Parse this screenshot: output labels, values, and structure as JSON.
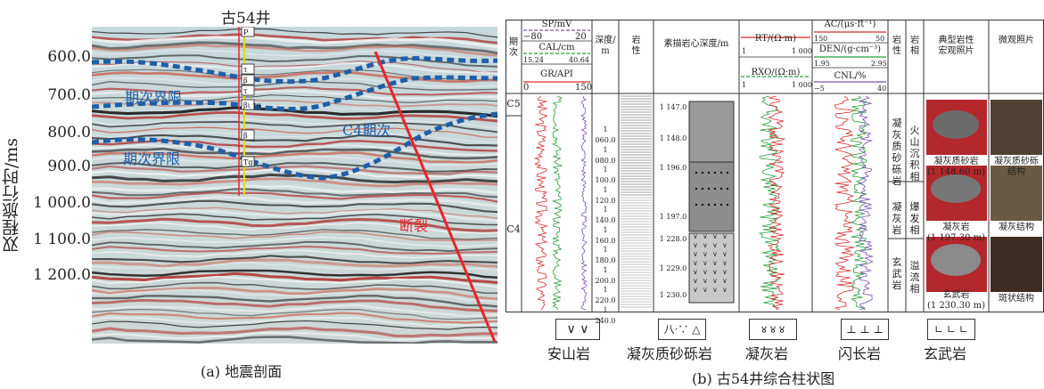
{
  "panel_a": {
    "well_name": "古54井",
    "y_axis_title": "双程旅行时/ms",
    "y_ticks": [
      "600.0",
      "700.0",
      "800.0",
      "900.0",
      "1 000.0",
      "1 100.0",
      "1 200.0"
    ],
    "labels": {
      "boundary_1": "期次界限",
      "boundary_2": "期次界限",
      "c4": "C4期次",
      "fault": "断裂"
    },
    "well_tags": [
      "P",
      "τ",
      "β",
      "τ",
      "βι τα",
      "β",
      "Tg"
    ],
    "caption": "(a) 地震剖面"
  },
  "panel_b": {
    "headers": {
      "stage": "期\n次",
      "sp": "SP/mV",
      "sp_range": [
        "−80",
        "20"
      ],
      "cal": "CAL/cm",
      "cal_range": [
        "15.24",
        "40.64"
      ],
      "gr": "GR/API",
      "gr_range": [
        "0",
        "150"
      ],
      "depth": "深度/\nm",
      "lithology": "岩\n性",
      "core": "素描岩心深度/m",
      "rt": "RT/(Ω·m)",
      "rt_range": [
        "1",
        "1 000"
      ],
      "rxo": "RXO/(Ω·m)",
      "rxo_range": [
        "1",
        "1 000"
      ],
      "ac": "AC/(μs·ft⁻¹)",
      "ac_range": [
        "150",
        "50"
      ],
      "den": "DEN/(g·cm⁻³)",
      "den_range": [
        "1.95",
        "2.95"
      ],
      "cnl": "CNL/%",
      "cnl_range": [
        "−5",
        "40"
      ],
      "rock": "岩\n性",
      "facies": "岩\n相",
      "macro": "典型岩性\n宏观照片",
      "micro": "微观照片"
    },
    "stages": [
      "C5",
      "C4"
    ],
    "depth_ticks": [
      "1 060.0",
      "1 080.0",
      "1 100.0",
      "1 120.0",
      "1 140.0",
      "1 160.0",
      "1 180.0",
      "1 200.0",
      "1 220.0",
      "1 240.0"
    ],
    "core_depths": [
      "1 147.0",
      "1 148.0",
      "1 196.0",
      "1 197.0",
      "1 228.0",
      "1 229.0",
      "1 230.0"
    ],
    "rock_labels": [
      "凝灰质砂砾岩",
      "凝灰岩",
      "玄武岩"
    ],
    "facies_labels": [
      "火山沉积相",
      "爆发相",
      "溢流相"
    ],
    "photo_captions": [
      "凝灰质砂岩\n(1 148.60 m)",
      "凝灰岩\n(1 197.30 m)",
      "玄武岩\n(1 230.30 m)"
    ],
    "micro_captions": [
      "凝灰质砂砾\n结构",
      "凝灰结构",
      "斑状结构"
    ],
    "legend": [
      {
        "symbol": "∨  ∨",
        "label": "安山岩"
      },
      {
        "symbol": "八·∵ △",
        "label": "凝灰质砂砾岩"
      },
      {
        "symbol": "४ ४ ४",
        "label": "凝灰岩"
      },
      {
        "symbol": "⊥ ⊥ ⊥",
        "label": "闪长岩"
      },
      {
        "symbol": "∟ ∟ ∟",
        "label": "玄武岩"
      }
    ],
    "caption": "(b) 古54井综合柱状图"
  },
  "colors": {
    "fault": "#e8252a",
    "boundary": "#1f5fa8",
    "gr": "#d62b2b",
    "sp": "#7a4fb8",
    "cal": "#2a9c3a"
  }
}
